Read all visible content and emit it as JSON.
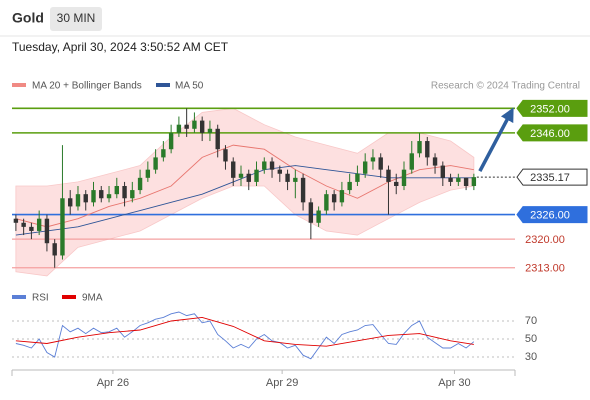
{
  "header": {
    "title": "Gold",
    "interval": "30 MIN",
    "timestamp": "Tuesday, April 30, 2024 3:50:52 AM CET"
  },
  "chart_data": {
    "type": "candlestick",
    "legend": [
      "MA 20 + Bollinger Bands",
      "MA 50"
    ],
    "credit": "Research © 2024 Trading Central",
    "up_color": "#2a7a2a",
    "down_color": "#333333",
    "xlim": [
      -0.5,
      64.3
    ],
    "xticks": [
      {
        "value": 12.5,
        "label": "Apr 26"
      },
      {
        "value": 34.3,
        "label": "Apr 29"
      },
      {
        "value": 56.5,
        "label": "Apr 30"
      }
    ],
    "ylim": [
      2310,
      2356
    ],
    "open": [
      2325,
      2324,
      2323,
      2322,
      2325,
      2319,
      2316,
      2330,
      2328,
      2331,
      2329,
      2332,
      2330,
      2331,
      2333,
      2330,
      2332,
      2335,
      2337,
      2340,
      2342,
      2346,
      2348,
      2347,
      2349,
      2346,
      2347,
      2342,
      2339,
      2335,
      2336,
      2334,
      2337,
      2339,
      2337,
      2336,
      2334,
      2335,
      2329,
      2324,
      2327,
      2331,
      2329,
      2332,
      2334,
      2336,
      2339,
      2340,
      2337,
      2334,
      2333,
      2337,
      2341,
      2344,
      2340,
      2338,
      2335,
      2334,
      2335,
      2333
    ],
    "high": [
      2326,
      2325,
      2324,
      2327,
      2326,
      2320,
      2343,
      2332,
      2333,
      2332,
      2334,
      2333,
      2333,
      2335,
      2334,
      2334,
      2337,
      2339,
      2342,
      2344,
      2348,
      2350,
      2352,
      2351,
      2350,
      2349,
      2348,
      2343,
      2340,
      2338,
      2337,
      2339,
      2340,
      2340,
      2338,
      2337,
      2337,
      2336,
      2330,
      2328,
      2332,
      2332,
      2334,
      2336,
      2338,
      2341,
      2342,
      2341,
      2338,
      2336,
      2339,
      2344,
      2346,
      2345,
      2341,
      2339,
      2336,
      2336,
      2335,
      2336
    ],
    "low": [
      2322,
      2321,
      2320,
      2321,
      2317,
      2313,
      2315,
      2326,
      2327,
      2327,
      2328,
      2329,
      2329,
      2330,
      2328,
      2329,
      2331,
      2334,
      2336,
      2339,
      2341,
      2345,
      2345,
      2346,
      2344,
      2344,
      2340,
      2337,
      2333,
      2333,
      2332,
      2333,
      2336,
      2335,
      2334,
      2332,
      2330,
      2327,
      2320,
      2323,
      2326,
      2327,
      2328,
      2331,
      2333,
      2335,
      2337,
      2335,
      2326,
      2331,
      2332,
      2336,
      2340,
      2338,
      2336,
      2333,
      2333,
      2333,
      2332,
      2332
    ],
    "close": [
      2324,
      2323,
      2322,
      2325,
      2319,
      2316,
      2330,
      2328,
      2331,
      2329,
      2332,
      2330,
      2331,
      2333,
      2330,
      2332,
      2335,
      2337,
      2340,
      2342,
      2346,
      2348,
      2347,
      2349,
      2346,
      2347,
      2342,
      2339,
      2335,
      2336,
      2334,
      2337,
      2339,
      2337,
      2336,
      2334,
      2335,
      2329,
      2324,
      2327,
      2331,
      2329,
      2332,
      2334,
      2336,
      2339,
      2340,
      2337,
      2334,
      2333,
      2337,
      2341,
      2344,
      2340,
      2338,
      2335,
      2334,
      2335,
      2333,
      2335.17
    ],
    "overlay_x": [
      0,
      4,
      8,
      12,
      16,
      20,
      24,
      28,
      32,
      36,
      40,
      44,
      48,
      52,
      56,
      59
    ],
    "series": [
      {
        "name": "MA 20 + Bollinger Bands",
        "color": "#e8766f",
        "values": [
          2325,
          2323,
          2325,
          2328,
          2330,
          2333,
          2340,
          2343,
          2342,
          2337,
          2333,
          2330,
          2334,
          2337,
          2338,
          2337
        ]
      },
      {
        "name": "MA 50",
        "color": "#2f5597",
        "values": [
          2321,
          2322,
          2323,
          2325,
          2327,
          2329,
          2331,
          2334,
          2337,
          2338,
          2337,
          2336,
          2335,
          2335,
          2335,
          2335
        ]
      }
    ],
    "band_upper": [
      2333,
      2333,
      2334,
      2336,
      2338,
      2345,
      2351,
      2352,
      2348,
      2345,
      2343,
      2341,
      2346,
      2346,
      2344,
      2340
    ],
    "band_lower": [
      2312,
      2311,
      2318,
      2320,
      2322,
      2326,
      2330,
      2333,
      2333,
      2326,
      2322,
      2321,
      2325,
      2329,
      2332,
      2333
    ],
    "band_color": "#fde0e0",
    "levels": [
      {
        "value": 2352,
        "label": "2352.00",
        "color": "#5a9e0f",
        "boxed": true
      },
      {
        "value": 2346,
        "label": "2346.00",
        "color": "#5a9e0f",
        "boxed": true
      },
      {
        "value": 2335.17,
        "label": "2335.17",
        "color": "#333333",
        "boxed": true
      },
      {
        "value": 2326,
        "label": "2326.00",
        "color": "#2f6fdd",
        "boxed": true
      },
      {
        "value": 2320,
        "label": "2320.00",
        "color": "#f4a0a0",
        "boxed": false
      },
      {
        "value": 2313,
        "label": "2313.00",
        "color": "#f4a0a0",
        "boxed": false
      }
    ],
    "rsi": {
      "legend": [
        "RSI",
        "9MA"
      ],
      "ylim": [
        20,
        80
      ],
      "yticks": [
        70,
        50,
        30
      ],
      "series": [
        {
          "name": "RSI",
          "color": "#5b7fd6",
          "values": [
            45,
            43,
            40,
            50,
            35,
            30,
            65,
            58,
            62,
            56,
            62,
            57,
            58,
            62,
            52,
            58,
            65,
            68,
            72,
            74,
            78,
            80,
            76,
            78,
            68,
            70,
            55,
            48,
            40,
            44,
            40,
            50,
            55,
            48,
            46,
            40,
            43,
            32,
            28,
            40,
            52,
            45,
            55,
            58,
            60,
            65,
            66,
            55,
            45,
            44,
            56,
            65,
            70,
            52,
            46,
            40,
            40,
            45,
            40,
            47
          ]
        },
        {
          "name": "9MA",
          "color": "#e00000",
          "values": [
            48,
            45,
            52,
            57,
            60,
            70,
            74,
            64,
            48,
            44,
            42,
            48,
            54,
            56,
            48,
            44
          ]
        }
      ]
    }
  }
}
